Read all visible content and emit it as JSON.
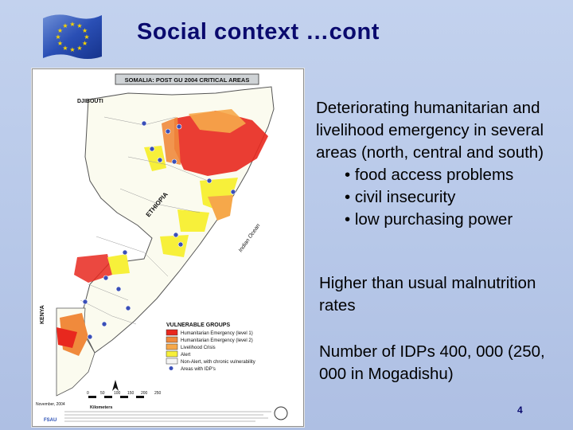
{
  "slide": {
    "title": "Social context …cont",
    "paragraph1": "Deteriorating humanitarian and livelihood emergency in several areas (north, central and south)",
    "bullets": [
      "• food access problems",
      "• civil insecurity",
      "• low purchasing power"
    ],
    "paragraph2": "Higher than usual malnutrition rates",
    "paragraph3": "Number of IDPs 400, 000 (250, 000 in Mogadishu)",
    "page_number": "4"
  },
  "map": {
    "header": "SOMALIA: POST GU 2004 CRITICAL AREAS",
    "labels": {
      "djibouti": "DJIBOUTI",
      "ethiopia": "ETHIOPIA",
      "kenya": "KENYA",
      "indian_ocean": "Indian Ocean"
    },
    "legend": {
      "title": "VULNERABLE GROUPS",
      "items": [
        {
          "label": "Humanitarian Emergency (level 1)",
          "color": "#e8281e"
        },
        {
          "label": "Humanitarian Emergency (level 2)",
          "color": "#f08a3c"
        },
        {
          "label": "Livelihood Crisis",
          "color": "#f6a84a"
        },
        {
          "label": "Alert",
          "color": "#f7f03a"
        },
        {
          "label": "Non-Alert, with chronic vulnerability",
          "color": "#f4f4f4"
        },
        {
          "label": "Areas with IDP's",
          "color": "#3a4fb8"
        }
      ]
    },
    "scale_label": "Kilometers",
    "scale_ticks": [
      "0",
      "50",
      "100",
      "150",
      "200",
      "250"
    ],
    "date": "November, 2004",
    "footer": "FSAU"
  }
}
